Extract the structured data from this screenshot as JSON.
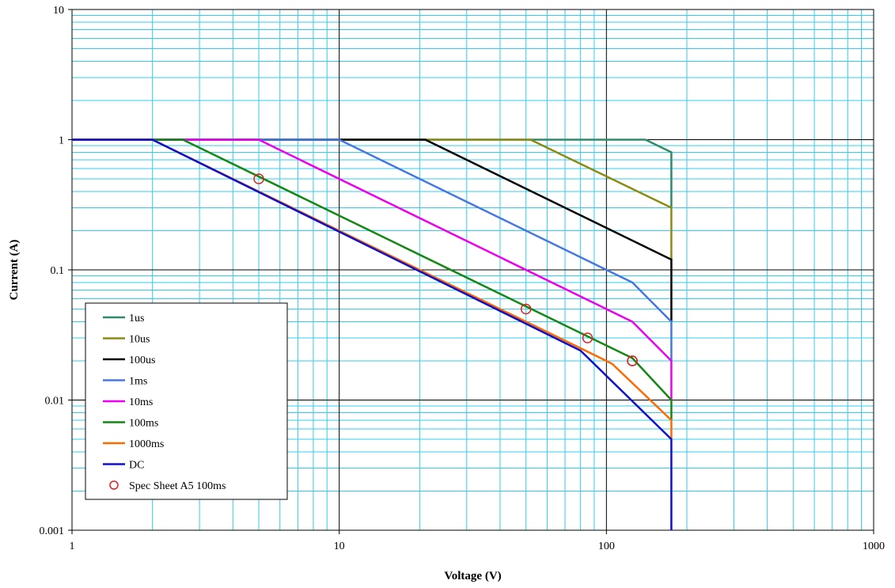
{
  "chart_data": {
    "type": "line",
    "title": "",
    "xlabel": "Voltage (V)",
    "ylabel": "Current (A)",
    "x_scale": "log",
    "y_scale": "log",
    "xlim": [
      1,
      1000
    ],
    "ylim": [
      0.001,
      10
    ],
    "x_ticks": [
      "1",
      "10",
      "100",
      "1000"
    ],
    "y_ticks": [
      "0.001",
      "0.01",
      "0.1",
      "1",
      "10"
    ],
    "grid": true,
    "legend_position": "lower-left",
    "colors": {
      "major_grid": "#000000",
      "minor_grid": "#33ccee"
    },
    "series": [
      {
        "name": "1us",
        "color": "#2e8b6a",
        "points": [
          [
            1,
            1
          ],
          [
            140,
            1
          ],
          [
            175,
            0.8
          ],
          [
            175,
            0.3
          ]
        ]
      },
      {
        "name": "10us",
        "color": "#8b8b10",
        "points": [
          [
            1,
            1
          ],
          [
            52,
            1
          ],
          [
            175,
            0.3
          ],
          [
            175,
            0.12
          ]
        ]
      },
      {
        "name": "100us",
        "color": "#000000",
        "points": [
          [
            1,
            1
          ],
          [
            21,
            1
          ],
          [
            175,
            0.12
          ],
          [
            175,
            0.04
          ]
        ]
      },
      {
        "name": "1ms",
        "color": "#4478e0",
        "points": [
          [
            1,
            1
          ],
          [
            10,
            1
          ],
          [
            100,
            0.1
          ],
          [
            125,
            0.08
          ],
          [
            175,
            0.04
          ],
          [
            175,
            0.02
          ]
        ]
      },
      {
        "name": "10ms",
        "color": "#ee00ee",
        "points": [
          [
            1,
            1
          ],
          [
            5,
            1
          ],
          [
            125,
            0.04
          ],
          [
            175,
            0.02
          ],
          [
            175,
            0.01
          ]
        ]
      },
      {
        "name": "100ms",
        "color": "#118811",
        "points": [
          [
            1,
            1
          ],
          [
            2.6,
            1
          ],
          [
            125,
            0.021
          ],
          [
            175,
            0.01
          ],
          [
            175,
            0.007
          ]
        ]
      },
      {
        "name": "1000ms",
        "color": "#ff6a00",
        "points": [
          [
            1,
            1
          ],
          [
            2,
            1
          ],
          [
            80,
            0.025
          ],
          [
            105,
            0.019
          ],
          [
            175,
            0.007
          ],
          [
            175,
            0.005
          ]
        ]
      },
      {
        "name": "DC",
        "color": "#1010cc",
        "points": [
          [
            1,
            1
          ],
          [
            2,
            1
          ],
          [
            80,
            0.024
          ],
          [
            175,
            0.005
          ],
          [
            175,
            0.001
          ]
        ]
      },
      {
        "name": "Spec Sheet A5 100ms",
        "color": "#dd2222",
        "marker": "open-circle",
        "points": [
          [
            5,
            0.5
          ],
          [
            50,
            0.05
          ],
          [
            85,
            0.03
          ],
          [
            125,
            0.02
          ],
          [
            125,
            0.02
          ]
        ]
      }
    ]
  }
}
